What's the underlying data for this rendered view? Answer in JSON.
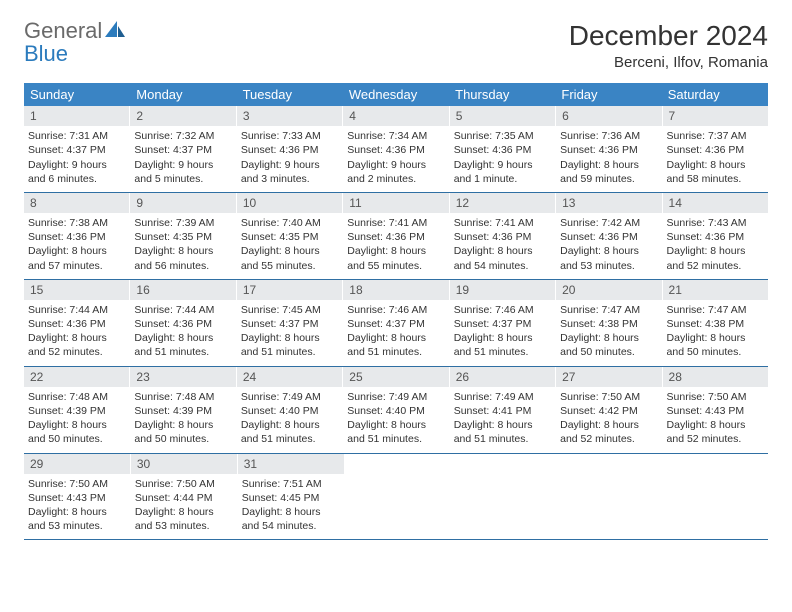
{
  "logo": {
    "word1": "General",
    "word2": "Blue"
  },
  "title": "December 2024",
  "location": "Berceni, Ilfov, Romania",
  "colors": {
    "header_bg": "#3a84c4",
    "daynum_bg": "#e7e9eb",
    "rule": "#2f6fa3",
    "logo_gray": "#6a6a6a",
    "logo_blue": "#2b7bbd"
  },
  "day_headers": [
    "Sunday",
    "Monday",
    "Tuesday",
    "Wednesday",
    "Thursday",
    "Friday",
    "Saturday"
  ],
  "weeks": [
    [
      {
        "n": "1",
        "sunrise": "7:31 AM",
        "sunset": "4:37 PM",
        "daylight": "9 hours and 6 minutes."
      },
      {
        "n": "2",
        "sunrise": "7:32 AM",
        "sunset": "4:37 PM",
        "daylight": "9 hours and 5 minutes."
      },
      {
        "n": "3",
        "sunrise": "7:33 AM",
        "sunset": "4:36 PM",
        "daylight": "9 hours and 3 minutes."
      },
      {
        "n": "4",
        "sunrise": "7:34 AM",
        "sunset": "4:36 PM",
        "daylight": "9 hours and 2 minutes."
      },
      {
        "n": "5",
        "sunrise": "7:35 AM",
        "sunset": "4:36 PM",
        "daylight": "9 hours and 1 minute."
      },
      {
        "n": "6",
        "sunrise": "7:36 AM",
        "sunset": "4:36 PM",
        "daylight": "8 hours and 59 minutes."
      },
      {
        "n": "7",
        "sunrise": "7:37 AM",
        "sunset": "4:36 PM",
        "daylight": "8 hours and 58 minutes."
      }
    ],
    [
      {
        "n": "8",
        "sunrise": "7:38 AM",
        "sunset": "4:36 PM",
        "daylight": "8 hours and 57 minutes."
      },
      {
        "n": "9",
        "sunrise": "7:39 AM",
        "sunset": "4:35 PM",
        "daylight": "8 hours and 56 minutes."
      },
      {
        "n": "10",
        "sunrise": "7:40 AM",
        "sunset": "4:35 PM",
        "daylight": "8 hours and 55 minutes."
      },
      {
        "n": "11",
        "sunrise": "7:41 AM",
        "sunset": "4:36 PM",
        "daylight": "8 hours and 55 minutes."
      },
      {
        "n": "12",
        "sunrise": "7:41 AM",
        "sunset": "4:36 PM",
        "daylight": "8 hours and 54 minutes."
      },
      {
        "n": "13",
        "sunrise": "7:42 AM",
        "sunset": "4:36 PM",
        "daylight": "8 hours and 53 minutes."
      },
      {
        "n": "14",
        "sunrise": "7:43 AM",
        "sunset": "4:36 PM",
        "daylight": "8 hours and 52 minutes."
      }
    ],
    [
      {
        "n": "15",
        "sunrise": "7:44 AM",
        "sunset": "4:36 PM",
        "daylight": "8 hours and 52 minutes."
      },
      {
        "n": "16",
        "sunrise": "7:44 AM",
        "sunset": "4:36 PM",
        "daylight": "8 hours and 51 minutes."
      },
      {
        "n": "17",
        "sunrise": "7:45 AM",
        "sunset": "4:37 PM",
        "daylight": "8 hours and 51 minutes."
      },
      {
        "n": "18",
        "sunrise": "7:46 AM",
        "sunset": "4:37 PM",
        "daylight": "8 hours and 51 minutes."
      },
      {
        "n": "19",
        "sunrise": "7:46 AM",
        "sunset": "4:37 PM",
        "daylight": "8 hours and 51 minutes."
      },
      {
        "n": "20",
        "sunrise": "7:47 AM",
        "sunset": "4:38 PM",
        "daylight": "8 hours and 50 minutes."
      },
      {
        "n": "21",
        "sunrise": "7:47 AM",
        "sunset": "4:38 PM",
        "daylight": "8 hours and 50 minutes."
      }
    ],
    [
      {
        "n": "22",
        "sunrise": "7:48 AM",
        "sunset": "4:39 PM",
        "daylight": "8 hours and 50 minutes."
      },
      {
        "n": "23",
        "sunrise": "7:48 AM",
        "sunset": "4:39 PM",
        "daylight": "8 hours and 50 minutes."
      },
      {
        "n": "24",
        "sunrise": "7:49 AM",
        "sunset": "4:40 PM",
        "daylight": "8 hours and 51 minutes."
      },
      {
        "n": "25",
        "sunrise": "7:49 AM",
        "sunset": "4:40 PM",
        "daylight": "8 hours and 51 minutes."
      },
      {
        "n": "26",
        "sunrise": "7:49 AM",
        "sunset": "4:41 PM",
        "daylight": "8 hours and 51 minutes."
      },
      {
        "n": "27",
        "sunrise": "7:50 AM",
        "sunset": "4:42 PM",
        "daylight": "8 hours and 52 minutes."
      },
      {
        "n": "28",
        "sunrise": "7:50 AM",
        "sunset": "4:43 PM",
        "daylight": "8 hours and 52 minutes."
      }
    ],
    [
      {
        "n": "29",
        "sunrise": "7:50 AM",
        "sunset": "4:43 PM",
        "daylight": "8 hours and 53 minutes."
      },
      {
        "n": "30",
        "sunrise": "7:50 AM",
        "sunset": "4:44 PM",
        "daylight": "8 hours and 53 minutes."
      },
      {
        "n": "31",
        "sunrise": "7:51 AM",
        "sunset": "4:45 PM",
        "daylight": "8 hours and 54 minutes."
      },
      null,
      null,
      null,
      null
    ]
  ],
  "labels": {
    "sunrise": "Sunrise:",
    "sunset": "Sunset:",
    "daylight": "Daylight:"
  }
}
